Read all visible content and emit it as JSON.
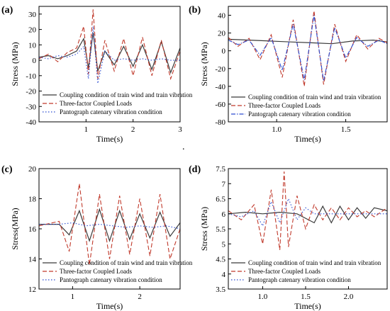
{
  "figure": {
    "stray_mark": "."
  },
  "colors": {
    "coupling": "#3a3a3a",
    "three_factor": "#c0392b",
    "pantograph": "#2a4bd0",
    "axis": "#000000"
  },
  "legend_labels": [
    "Coupling condition of train wind and train vibration",
    "Three-factor Coupled Loads",
    "Pantograph catenary vibration condition"
  ],
  "chart_data": [
    {
      "panel_label": "(a)",
      "type": "line",
      "xlabel": "Time(s)",
      "ylabel": "Stress (MPa)",
      "xlim": [
        0,
        3
      ],
      "ylim": [
        -40,
        35
      ],
      "xticks": [
        1,
        2,
        3
      ],
      "yticks": [
        -40,
        -30,
        -20,
        -10,
        0,
        10,
        20,
        30
      ],
      "legend_position": "bottom-left",
      "series": [
        {
          "name": "Coupling condition of train wind and train vibration",
          "style": "solid",
          "x": [
            0,
            0.2,
            0.4,
            0.6,
            0.8,
            0.95,
            1.05,
            1.15,
            1.25,
            1.4,
            1.6,
            1.8,
            2.0,
            2.2,
            2.4,
            2.6,
            2.8,
            3.0
          ],
          "y": [
            2,
            3,
            1,
            3,
            6,
            14,
            -5,
            18,
            -7,
            6,
            -3,
            9,
            -4,
            10,
            -6,
            12,
            -8,
            8
          ]
        },
        {
          "name": "Three-factor Coupled Loads",
          "style": "dash",
          "x": [
            0,
            0.2,
            0.4,
            0.6,
            0.8,
            0.95,
            1.05,
            1.15,
            1.25,
            1.4,
            1.6,
            1.8,
            2.0,
            2.2,
            2.4,
            2.6,
            2.8,
            3.0
          ],
          "y": [
            1,
            4,
            -1,
            5,
            8,
            22,
            -9,
            33,
            -12,
            13,
            -7,
            14,
            -10,
            15,
            -10,
            13,
            -12,
            6
          ]
        },
        {
          "name": "Pantograph catenary vibration condition",
          "style": "dot",
          "x": [
            0,
            0.2,
            0.4,
            0.6,
            0.8,
            0.95,
            1.05,
            1.15,
            1.25,
            1.4,
            1.6,
            1.8,
            2.0,
            2.2,
            2.4,
            2.6,
            2.8,
            3.0
          ],
          "y": [
            2,
            1,
            3,
            2,
            4,
            9,
            -12,
            22,
            -15,
            6,
            0,
            1,
            0,
            1,
            0,
            1,
            0,
            0
          ]
        }
      ]
    },
    {
      "panel_label": "(b)",
      "type": "line",
      "xlabel": "Time(s)",
      "ylabel": "Stress (MPa)",
      "xlim": [
        0.65,
        1.8
      ],
      "ylim": [
        -80,
        50
      ],
      "xticks": [
        1.0,
        1.5
      ],
      "yticks": [
        -80,
        -60,
        -40,
        -20,
        0,
        20,
        40
      ],
      "legend_position": "bottom",
      "series": [
        {
          "name": "Coupling condition of train wind and train vibration",
          "style": "solid",
          "x": [
            0.65,
            0.8,
            0.95,
            1.1,
            1.25,
            1.4,
            1.55,
            1.7,
            1.8
          ],
          "y": [
            13,
            12,
            11,
            10,
            9,
            8,
            11,
            12,
            10
          ]
        },
        {
          "name": "Three-factor Coupled Loads",
          "style": "dash",
          "x": [
            0.65,
            0.72,
            0.8,
            0.88,
            0.96,
            1.04,
            1.12,
            1.2,
            1.27,
            1.34,
            1.42,
            1.5,
            1.58,
            1.66,
            1.74,
            1.8
          ],
          "y": [
            15,
            5,
            14,
            -10,
            18,
            -30,
            35,
            -40,
            45,
            -38,
            30,
            -12,
            18,
            2,
            14,
            9
          ]
        },
        {
          "name": "Pantograph catenary vibration condition",
          "style": "dashdot",
          "x": [
            0.65,
            0.72,
            0.8,
            0.88,
            0.96,
            1.04,
            1.12,
            1.2,
            1.27,
            1.34,
            1.42,
            1.5,
            1.58,
            1.66,
            1.74,
            1.8
          ],
          "y": [
            12,
            7,
            12,
            -5,
            15,
            -22,
            30,
            -33,
            40,
            -34,
            26,
            -8,
            15,
            5,
            12,
            8
          ]
        }
      ]
    },
    {
      "panel_label": "(c)",
      "type": "line",
      "xlabel": "Time(s)",
      "ylabel": "Stress(MPa)",
      "xlim": [
        0.5,
        2.6
      ],
      "ylim": [
        12,
        20
      ],
      "xticks": [
        1,
        2
      ],
      "yticks": [
        12,
        14,
        16,
        18,
        20
      ],
      "legend_position": "bottom",
      "series": [
        {
          "name": "Coupling condition of train wind and train vibration",
          "style": "solid",
          "x": [
            0.5,
            0.8,
            0.95,
            1.1,
            1.25,
            1.4,
            1.55,
            1.7,
            1.85,
            2.0,
            2.15,
            2.3,
            2.45,
            2.6
          ],
          "y": [
            16.3,
            16.3,
            15.6,
            17.2,
            15.2,
            17.3,
            15.2,
            17.2,
            15.3,
            17.0,
            15.4,
            17.1,
            15.5,
            16.4
          ]
        },
        {
          "name": "Three-factor Coupled Loads",
          "style": "dash",
          "x": [
            0.5,
            0.8,
            0.95,
            1.1,
            1.25,
            1.4,
            1.55,
            1.7,
            1.85,
            2.0,
            2.15,
            2.3,
            2.45,
            2.6
          ],
          "y": [
            16.2,
            16.5,
            14.5,
            19.0,
            13.6,
            18.3,
            14.0,
            18.2,
            14.3,
            18.0,
            14.2,
            18.3,
            14.0,
            16.0
          ]
        },
        {
          "name": "Pantograph catenary vibration condition",
          "style": "dot",
          "x": [
            0.5,
            0.8,
            1.0,
            1.2,
            1.4,
            1.6,
            1.8,
            2.0,
            2.2,
            2.4,
            2.6
          ],
          "y": [
            16.3,
            16.3,
            16.4,
            16.2,
            16.3,
            16.2,
            16.1,
            16.2,
            16.1,
            16.2,
            16.0
          ]
        }
      ]
    },
    {
      "panel_label": "(d)",
      "type": "line",
      "xlabel": "Time(s)",
      "ylabel": "Stress (MPa)",
      "xlim": [
        0.6,
        2.45
      ],
      "ylim": [
        3.5,
        7.5
      ],
      "xticks": [
        1.0,
        1.5,
        2.0
      ],
      "yticks": [
        3.5,
        4.0,
        4.5,
        5.0,
        5.5,
        6.0,
        6.5,
        7.0,
        7.5
      ],
      "legend_position": "bottom",
      "series": [
        {
          "name": "Coupling condition of train wind and train vibration",
          "style": "solid",
          "x": [
            0.6,
            0.8,
            1.0,
            1.2,
            1.4,
            1.6,
            1.7,
            1.8,
            1.9,
            2.0,
            2.1,
            2.2,
            2.3,
            2.45
          ],
          "y": [
            6.0,
            6.05,
            6.0,
            6.05,
            6.0,
            5.7,
            6.25,
            5.7,
            6.25,
            5.8,
            6.2,
            5.85,
            6.2,
            6.1
          ]
        },
        {
          "name": "Three-factor Coupled Loads",
          "style": "dash",
          "x": [
            0.6,
            0.75,
            0.9,
            1.0,
            1.1,
            1.2,
            1.25,
            1.3,
            1.4,
            1.5,
            1.6,
            1.7,
            1.8,
            1.9,
            2.0,
            2.1,
            2.2,
            2.3,
            2.45
          ],
          "y": [
            6.1,
            5.8,
            6.3,
            5.0,
            6.8,
            4.8,
            7.4,
            4.9,
            6.6,
            5.5,
            6.3,
            5.8,
            6.2,
            5.8,
            6.2,
            5.9,
            6.1,
            5.9,
            6.2
          ]
        },
        {
          "name": "Pantograph catenary vibration condition",
          "style": "dot",
          "x": [
            0.6,
            0.75,
            0.9,
            1.0,
            1.1,
            1.2,
            1.3,
            1.4,
            1.5,
            1.6,
            1.8,
            2.0,
            2.2,
            2.45
          ],
          "y": [
            6.0,
            5.9,
            6.1,
            5.6,
            6.4,
            5.7,
            6.5,
            5.8,
            6.2,
            6.0,
            6.0,
            6.0,
            6.0,
            6.0
          ]
        }
      ]
    }
  ]
}
